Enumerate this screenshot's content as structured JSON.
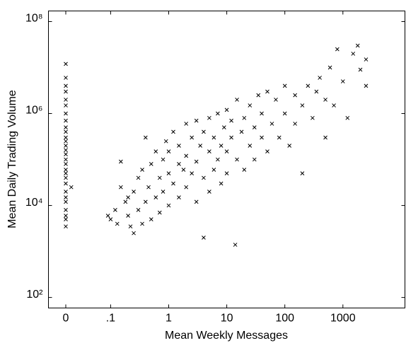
{
  "chart_data": {
    "type": "scatter",
    "x_label": "Mean Weekly Messages",
    "y_label": "Mean Daily Trading Volume",
    "xlog": true,
    "ylog": true,
    "marker": "x",
    "color": "#000000",
    "xlim": [
      0.0085,
      11700
    ],
    "ylim": [
      59,
      170000000
    ],
    "xticks": [
      0,
      {
        "value": 0.1,
        "label": ".1"
      },
      1,
      10,
      100,
      1000
    ],
    "yticks": [
      {
        "value": 100,
        "label": "10²"
      },
      {
        "value": 10000,
        "label": "10⁴"
      },
      {
        "value": 1000000,
        "label": "10⁶"
      },
      {
        "value": 100000000,
        "label": "10⁸"
      }
    ],
    "x": [
      0,
      0,
      0,
      0,
      0,
      0,
      0,
      0,
      0,
      0,
      0,
      0,
      0,
      0,
      0,
      0,
      0,
      0,
      0,
      0,
      0,
      0,
      0,
      0,
      0,
      0,
      0,
      0,
      0.021,
      0.09,
      0.1,
      0.12,
      0.13,
      0.15,
      0.15,
      0.18,
      0.2,
      0.2,
      0.22,
      0.25,
      0.25,
      0.3,
      0.3,
      0.35,
      0.35,
      0.4,
      0.4,
      0.45,
      0.5,
      0.5,
      0.6,
      0.6,
      0.7,
      0.7,
      0.8,
      0.8,
      0.9,
      1,
      1,
      1,
      1.2,
      1.2,
      1.5,
      1.5,
      1.5,
      1.8,
      2,
      2,
      2,
      2.5,
      2.5,
      3,
      3,
      3,
      3.5,
      4,
      4,
      4,
      5,
      5,
      5,
      6,
      6,
      7,
      7,
      8,
      8,
      9,
      10,
      10,
      10,
      12,
      12,
      14,
      15,
      15,
      18,
      20,
      20,
      25,
      25,
      30,
      30,
      35,
      40,
      40,
      50,
      50,
      60,
      70,
      80,
      100,
      100,
      120,
      150,
      150,
      200,
      200,
      250,
      300,
      350,
      400,
      500,
      500,
      600,
      700,
      800,
      1000,
      1200,
      1500,
      1800,
      2000,
      2500,
      2500
    ],
    "values": [
      3500,
      5000,
      6000,
      8000,
      12000,
      15000,
      20000,
      30000,
      40000,
      50000,
      60000,
      80000,
      100000,
      130000,
      160000,
      200000,
      250000,
      300000,
      400000,
      500000,
      700000,
      1000000,
      1500000,
      2000000,
      3000000,
      4000000,
      6000000,
      12000000,
      25000,
      6000,
      5000,
      8000,
      4000,
      90000,
      25000,
      12000,
      6000,
      15000,
      3500,
      2500,
      20000,
      40000,
      8000,
      4000,
      60000,
      12000,
      300000,
      25000,
      5000,
      80000,
      15000,
      150000,
      40000,
      7000,
      100000,
      20000,
      250000,
      50000,
      10000,
      150000,
      30000,
      400000,
      80000,
      15000,
      200000,
      60000,
      120000,
      25000,
      600000,
      50000,
      300000,
      90000,
      12000,
      700000,
      200000,
      40000,
      400000,
      2000,
      150000,
      800000,
      20000,
      300000,
      60000,
      1000000,
      100000,
      200000,
      30000,
      500000,
      150000,
      1200000,
      50000,
      300000,
      700000,
      1400,
      100000,
      2000000,
      400000,
      800000,
      60000,
      200000,
      1500000,
      500000,
      100000,
      2500000,
      300000,
      1000000,
      150000,
      3000000,
      600000,
      2000000,
      300000,
      1000000,
      4000000,
      200000,
      600000,
      2500000,
      1500000,
      50000,
      4000000,
      800000,
      3000000,
      6000000,
      300000,
      2000000,
      10000000,
      1500000,
      25000000,
      5000000,
      800000,
      20000000,
      30000000,
      9000000,
      15000000,
      4000000
    ]
  }
}
